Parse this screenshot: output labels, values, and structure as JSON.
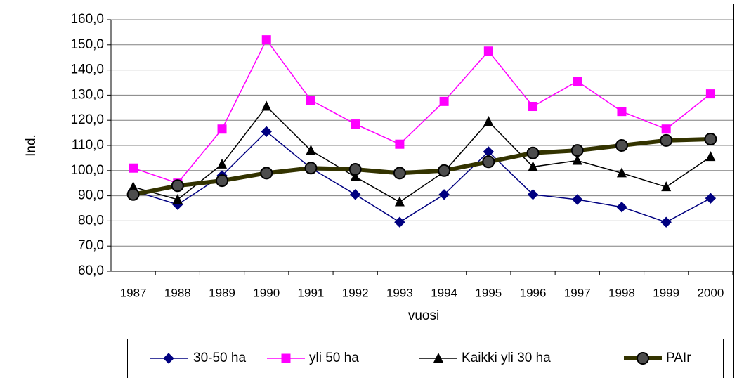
{
  "chart_data": {
    "type": "line",
    "x_label": "vuosi",
    "y_label": "Ind.",
    "categories": [
      "1987",
      "1988",
      "1989",
      "1990",
      "1991",
      "1992",
      "1993",
      "1994",
      "1995",
      "1996",
      "1997",
      "1998",
      "1999",
      "2000"
    ],
    "series": [
      {
        "name": "30-50 ha",
        "color": "#000080",
        "marker": "diamond",
        "values": [
          92,
          86.5,
          98,
          115.5,
          101,
          90.5,
          79.5,
          90.5,
          107.5,
          90.5,
          88.5,
          85.5,
          79.5,
          89
        ]
      },
      {
        "name": "yli 50 ha",
        "color": "#ff00ff",
        "marker": "square",
        "values": [
          101,
          95,
          116.5,
          152,
          128,
          118.5,
          110.5,
          127.5,
          147.5,
          125.5,
          135.5,
          123.5,
          116.5,
          130.5
        ]
      },
      {
        "name": "Kaikki yli 30 ha",
        "color": "#000000",
        "marker": "triangle",
        "values": [
          93.5,
          88.5,
          102.5,
          125.5,
          108,
          97.5,
          87.5,
          99.5,
          119.5,
          101.5,
          104,
          99,
          93.5,
          105.5
        ]
      },
      {
        "name": "PAIr",
        "color": "#333300",
        "marker": "circle",
        "values": [
          90.5,
          94,
          96,
          99,
          101,
          100.5,
          99,
          100,
          103.5,
          107,
          108,
          110,
          112,
          112.5
        ]
      }
    ],
    "ylim": [
      60,
      160
    ],
    "yticks": [
      {
        "value": 60,
        "label": "60,0"
      },
      {
        "value": 70,
        "label": "70,0"
      },
      {
        "value": 80,
        "label": "80,0"
      },
      {
        "value": 90,
        "label": "90,0"
      },
      {
        "value": 100,
        "label": "100,0"
      },
      {
        "value": 110,
        "label": "110,0"
      },
      {
        "value": 120,
        "label": "120,0"
      },
      {
        "value": 130,
        "label": "130,0"
      },
      {
        "value": 140,
        "label": "140,0"
      },
      {
        "value": 150,
        "label": "150,0"
      },
      {
        "value": 160,
        "label": "160,0"
      }
    ],
    "grid": true,
    "legend": "bottom"
  }
}
